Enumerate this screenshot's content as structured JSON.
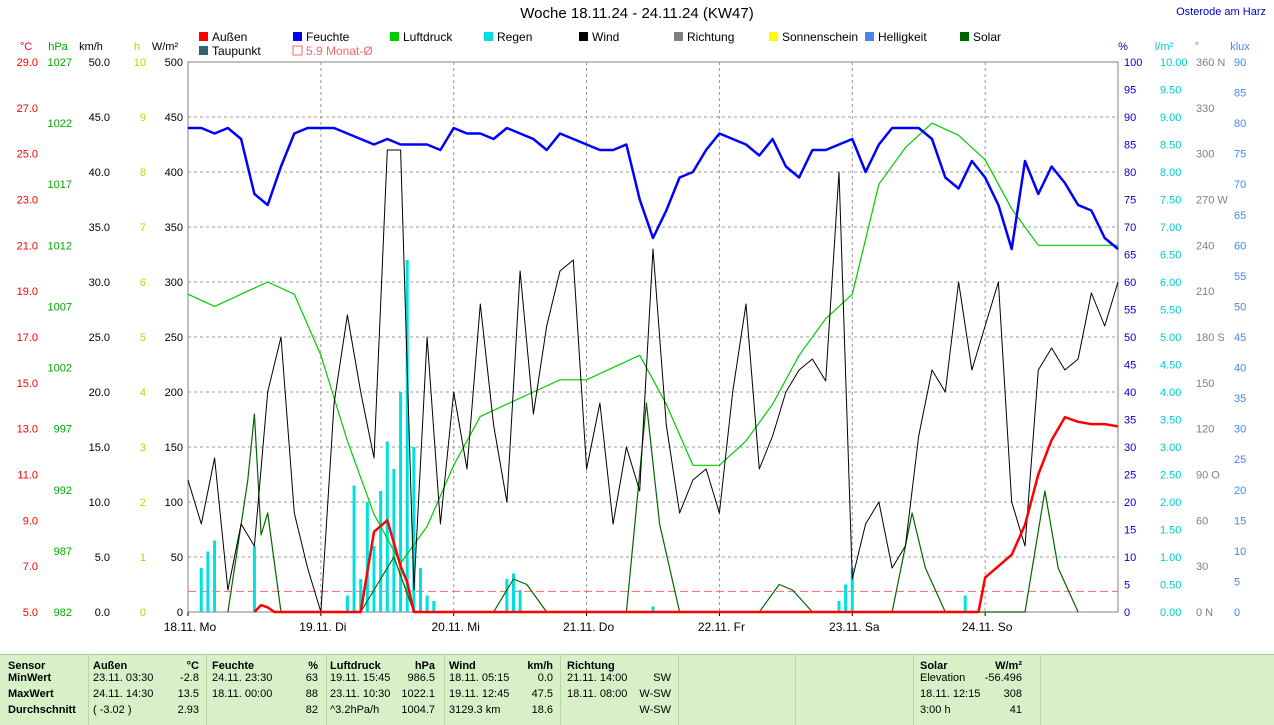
{
  "title": "Woche 18.11.24 - 24.11.24 (KW47)",
  "location": "Osterode am Harz",
  "colors": {
    "aussen": "#ff0000",
    "taupunkt": "#336666",
    "feuchte": "#0000ff",
    "luftdruck": "#00cc00",
    "regen": "#00e0e0",
    "wind": "#000000",
    "richtung": "#808080",
    "sonnenschein": "#ffff00",
    "helligkeit": "#4488ee",
    "solar": "#006600",
    "monat": "#ff6666"
  },
  "legend": [
    {
      "label": "Außen",
      "color": "#ff0000"
    },
    {
      "label": "Feuchte",
      "color": "#0000ff"
    },
    {
      "label": "Luftdruck",
      "color": "#00cc00"
    },
    {
      "label": "Regen",
      "color": "#00e0e0"
    },
    {
      "label": "Wind",
      "color": "#000000"
    },
    {
      "label": "Richtung",
      "color": "#808080"
    },
    {
      "label": "Sonnenschein",
      "color": "#ffff00"
    },
    {
      "label": "Helligkeit",
      "color": "#4488ee"
    },
    {
      "label": "Solar",
      "color": "#006600"
    },
    {
      "label": "Taupunkt",
      "color": "#336666"
    },
    {
      "label": "5.9 Monat-Ø",
      "color": "#ff6666",
      "hollow": true
    }
  ],
  "chart_data": {
    "type": "line",
    "x_ticks": [
      "18.11. Mo",
      "19.11. Di",
      "20.11. Mi",
      "21.11. Do",
      "22.11. Fr",
      "23.11. Sa",
      "24.11. So"
    ],
    "axes": {
      "temp": {
        "unit": "°C",
        "range": [
          5.0,
          29.0
        ],
        "ticks": [
          "29.0",
          "27.0",
          "25.0",
          "23.0",
          "21.0",
          "19.0",
          "17.0",
          "15.0",
          "13.0",
          "11.0",
          "9.0",
          "7.0",
          "5.0"
        ]
      },
      "pressure": {
        "unit": "hPa",
        "range": [
          982,
          1027
        ],
        "ticks": [
          "1027",
          "1022",
          "1017",
          "1012",
          "1007",
          "1002",
          "997",
          "992",
          "987",
          "982"
        ]
      },
      "wind": {
        "unit": "km/h",
        "range": [
          0.0,
          50.0
        ],
        "ticks": [
          "50.0",
          "45.0",
          "40.0",
          "35.0",
          "30.0",
          "25.0",
          "20.0",
          "15.0",
          "10.0",
          "5.0",
          "0.0"
        ]
      },
      "sun": {
        "unit": "h",
        "range": [
          0,
          10
        ],
        "ticks": [
          "10",
          "9",
          "8",
          "7",
          "6",
          "5",
          "4",
          "3",
          "2",
          "1",
          "0"
        ]
      },
      "solar": {
        "unit": "W/m²",
        "range": [
          0,
          500
        ],
        "ticks": [
          "500",
          "450",
          "400",
          "350",
          "300",
          "250",
          "200",
          "150",
          "100",
          "50",
          "0"
        ]
      },
      "humidity": {
        "unit": "%",
        "range": [
          0,
          100
        ],
        "ticks": [
          "100",
          "95",
          "90",
          "85",
          "80",
          "75",
          "70",
          "65",
          "60",
          "55",
          "50",
          "45",
          "40",
          "35",
          "30",
          "25",
          "20",
          "15",
          "10",
          "5",
          "0"
        ]
      },
      "rain": {
        "unit": "l/m²",
        "range": [
          0,
          10
        ],
        "ticks": [
          "10.00",
          "9.50",
          "9.00",
          "8.50",
          "8.00",
          "7.50",
          "7.00",
          "6.50",
          "6.00",
          "5.50",
          "5.00",
          "4.50",
          "4.00",
          "3.50",
          "3.00",
          "2.50",
          "2.00",
          "1.50",
          "1.00",
          "0.50",
          "0.00"
        ]
      },
      "direction": {
        "unit": "°",
        "range": [
          0,
          360
        ],
        "ticks": [
          "360 N",
          "330",
          "300",
          "270 W",
          "240",
          "210",
          "180 S",
          "150",
          "120",
          "90 O",
          "60",
          "30",
          "0 N"
        ]
      },
      "brightness": {
        "unit": "klux",
        "range": [
          0,
          90
        ],
        "ticks": [
          "90",
          "85",
          "80",
          "75",
          "70",
          "65",
          "60",
          "55",
          "50",
          "45",
          "40",
          "35",
          "30",
          "25",
          "20",
          "15",
          "10",
          "5",
          "0"
        ]
      }
    },
    "series": [
      {
        "name": "Feuchte",
        "axis": "humidity",
        "x": [
          0,
          0.1,
          0.2,
          0.3,
          0.4,
          0.5,
          0.6,
          0.7,
          0.8,
          0.9,
          1.0,
          1.1,
          1.2,
          1.3,
          1.4,
          1.5,
          1.6,
          1.7,
          1.8,
          1.9,
          2.0,
          2.1,
          2.2,
          2.3,
          2.4,
          2.5,
          2.6,
          2.7,
          2.8,
          2.9,
          3.0,
          3.1,
          3.2,
          3.3,
          3.4,
          3.5,
          3.6,
          3.7,
          3.8,
          3.9,
          4.0,
          4.1,
          4.2,
          4.3,
          4.4,
          4.5,
          4.6,
          4.7,
          4.8,
          4.9,
          5.0,
          5.1,
          5.2,
          5.3,
          5.4,
          5.5,
          5.6,
          5.7,
          5.8,
          5.9,
          6.0,
          6.1,
          6.2,
          6.3,
          6.4,
          6.5,
          6.6,
          6.7,
          6.8,
          6.9,
          7.0
        ],
        "values": [
          88,
          88,
          87,
          88,
          86,
          76,
          74,
          81,
          87,
          88,
          88,
          88,
          87,
          86,
          85,
          86,
          85,
          85,
          85,
          84,
          88,
          87,
          87,
          86,
          88,
          87,
          86,
          84,
          87,
          86,
          85,
          84,
          84,
          85,
          75,
          68,
          73,
          79,
          80,
          84,
          87,
          86,
          85,
          83,
          86,
          81,
          79,
          84,
          84,
          85,
          86,
          80,
          85,
          88,
          88,
          88,
          86,
          79,
          77,
          82,
          79,
          74,
          66,
          82,
          76,
          81,
          78,
          74,
          73,
          68,
          66
        ]
      },
      {
        "name": "Luftdruck",
        "axis": "pressure",
        "x": [
          0,
          0.2,
          0.4,
          0.6,
          0.8,
          1.0,
          1.2,
          1.4,
          1.6,
          1.8,
          2.0,
          2.2,
          2.4,
          2.6,
          2.8,
          3.0,
          3.2,
          3.4,
          3.6,
          3.8,
          4.0,
          4.2,
          4.4,
          4.6,
          4.8,
          5.0,
          5.2,
          5.4,
          5.6,
          5.8,
          6.0,
          6.2,
          6.4,
          6.6,
          6.8,
          7.0
        ],
        "values": [
          1008,
          1007,
          1008,
          1009,
          1008,
          1003,
          996,
          990,
          986,
          989,
          994,
          998,
          999,
          1000,
          1001,
          1001,
          1002,
          1003,
          999,
          994,
          994,
          996,
          999,
          1003,
          1006,
          1008,
          1017,
          1020,
          1022,
          1021,
          1019,
          1015,
          1012,
          1012,
          1012,
          1012
        ]
      },
      {
        "name": "Wind",
        "axis": "wind",
        "x": [
          0,
          0.1,
          0.2,
          0.3,
          0.4,
          0.5,
          0.6,
          0.7,
          0.8,
          0.9,
          1.0,
          1.1,
          1.2,
          1.3,
          1.4,
          1.5,
          1.6,
          1.7,
          1.8,
          1.9,
          2.0,
          2.1,
          2.2,
          2.3,
          2.4,
          2.5,
          2.6,
          2.7,
          2.8,
          2.9,
          3.0,
          3.1,
          3.2,
          3.3,
          3.4,
          3.5,
          3.6,
          3.7,
          3.8,
          3.9,
          4.0,
          4.1,
          4.2,
          4.3,
          4.4,
          4.5,
          4.6,
          4.7,
          4.8,
          4.9,
          5.0,
          5.1,
          5.2,
          5.3,
          5.4,
          5.5,
          5.6,
          5.7,
          5.8,
          5.9,
          6.0,
          6.1,
          6.2,
          6.3,
          6.4,
          6.5,
          6.6,
          6.7,
          6.8,
          6.9,
          7.0
        ],
        "values": [
          12,
          8,
          14,
          2,
          8,
          6,
          20,
          25,
          9,
          4,
          0,
          19,
          27,
          20,
          14,
          42,
          42,
          2,
          25,
          8,
          20,
          13,
          28,
          17,
          10,
          31,
          18,
          26,
          31,
          32,
          13,
          19,
          8,
          15,
          11,
          33,
          17,
          9,
          12,
          13,
          9,
          20,
          28,
          13,
          16,
          20,
          22,
          23,
          21,
          40,
          3,
          8,
          10,
          4,
          6,
          16,
          22,
          20,
          30,
          22,
          26,
          30,
          10,
          6,
          22,
          24,
          22,
          23,
          29,
          26,
          30
        ]
      },
      {
        "name": "Außen",
        "axis": "temp",
        "x": [
          0.5,
          0.55,
          0.6,
          0.65,
          1.3,
          1.4,
          1.5,
          1.6,
          1.65,
          1.7,
          4.9,
          5.95,
          6.0,
          6.1,
          6.2,
          6.3,
          6.4,
          6.5,
          6.6,
          6.7,
          6.8,
          6.9,
          7.0
        ],
        "values": [
          5.0,
          5.3,
          5.2,
          5.0,
          5.0,
          8.5,
          9.0,
          7.0,
          6.3,
          5.0,
          5.0,
          5.0,
          6.5,
          7.0,
          7.5,
          8.8,
          11.0,
          12.5,
          13.5,
          13.3,
          13.2,
          13.2,
          13.1
        ]
      },
      {
        "name": "Regen",
        "axis": "rain",
        "x": [
          0.1,
          0.15,
          0.2,
          0.5,
          1.2,
          1.25,
          1.3,
          1.35,
          1.4,
          1.45,
          1.5,
          1.55,
          1.6,
          1.65,
          1.7,
          1.75,
          1.8,
          1.85,
          2.4,
          2.45,
          2.5,
          3.5,
          4.9,
          4.95,
          5.0,
          5.85
        ],
        "values": [
          0.8,
          1.1,
          1.3,
          1.2,
          0.3,
          2.3,
          0.6,
          2.0,
          1.2,
          2.2,
          3.1,
          2.6,
          4.0,
          6.4,
          3.0,
          0.8,
          0.3,
          0.2,
          0.6,
          0.7,
          0.4,
          0.1,
          0.2,
          0.5,
          0.8,
          0.3
        ]
      },
      {
        "name": "Solar",
        "axis": "solar",
        "x": [
          0.3,
          0.45,
          0.5,
          0.55,
          0.6,
          0.7,
          1.3,
          1.45,
          1.55,
          1.7,
          2.3,
          2.45,
          2.55,
          2.7,
          3.3,
          3.45,
          3.55,
          3.7,
          4.3,
          4.45,
          4.55,
          4.7,
          5.3,
          5.45,
          5.55,
          5.7,
          6.3,
          6.45,
          6.55,
          6.7
        ],
        "values": [
          0,
          120,
          180,
          70,
          90,
          0,
          0,
          30,
          50,
          0,
          0,
          30,
          25,
          0,
          0,
          190,
          80,
          0,
          0,
          25,
          20,
          0,
          0,
          90,
          40,
          0,
          0,
          110,
          40,
          0
        ]
      }
    ],
    "monat_avg": 5.9,
    "grid": true
  },
  "footer": {
    "sensor": {
      "header": "Sensor",
      "rows": [
        "MinWert",
        "MaxWert",
        "Durchschnitt"
      ]
    },
    "aussen": {
      "header": "Außen",
      "unit": "°C",
      "rows": [
        [
          "23.11.  03:30",
          "-2.8"
        ],
        [
          "24.11.  14:30",
          "13.5"
        ],
        [
          "( -3.02 )",
          "2.93"
        ]
      ]
    },
    "feuchte": {
      "header": "Feuchte",
      "unit": "%",
      "rows": [
        [
          "24.11.  23:30",
          "63"
        ],
        [
          "18.11.  00:00",
          "88"
        ],
        [
          "",
          "82"
        ]
      ]
    },
    "luftdruck": {
      "header": "Luftdruck",
      "unit": "hPa",
      "rows": [
        [
          "19.11.  15:45",
          "986.5"
        ],
        [
          "23.11.  10:30",
          "1022.1"
        ],
        [
          "^3.2hPa/h",
          "1004.7"
        ]
      ]
    },
    "wind": {
      "header": "Wind",
      "unit": "km/h",
      "rows": [
        [
          "18.11.  05:15",
          "0.0"
        ],
        [
          "19.11.  12:45",
          "47.5"
        ],
        [
          "3129.3 km",
          "18.6"
        ]
      ]
    },
    "richtung": {
      "header": "Richtung",
      "rows": [
        [
          "21.11.  14:00",
          "SW"
        ],
        [
          "18.11.  08:00",
          "W-SW"
        ],
        [
          "",
          "W-SW"
        ]
      ]
    },
    "solar": {
      "header": "Solar",
      "unit": "W/m²",
      "rows": [
        [
          "Elevation",
          "-56.496"
        ],
        [
          "18.11.  12:15",
          "308"
        ],
        [
          "3:00 h",
          "41"
        ]
      ]
    }
  }
}
